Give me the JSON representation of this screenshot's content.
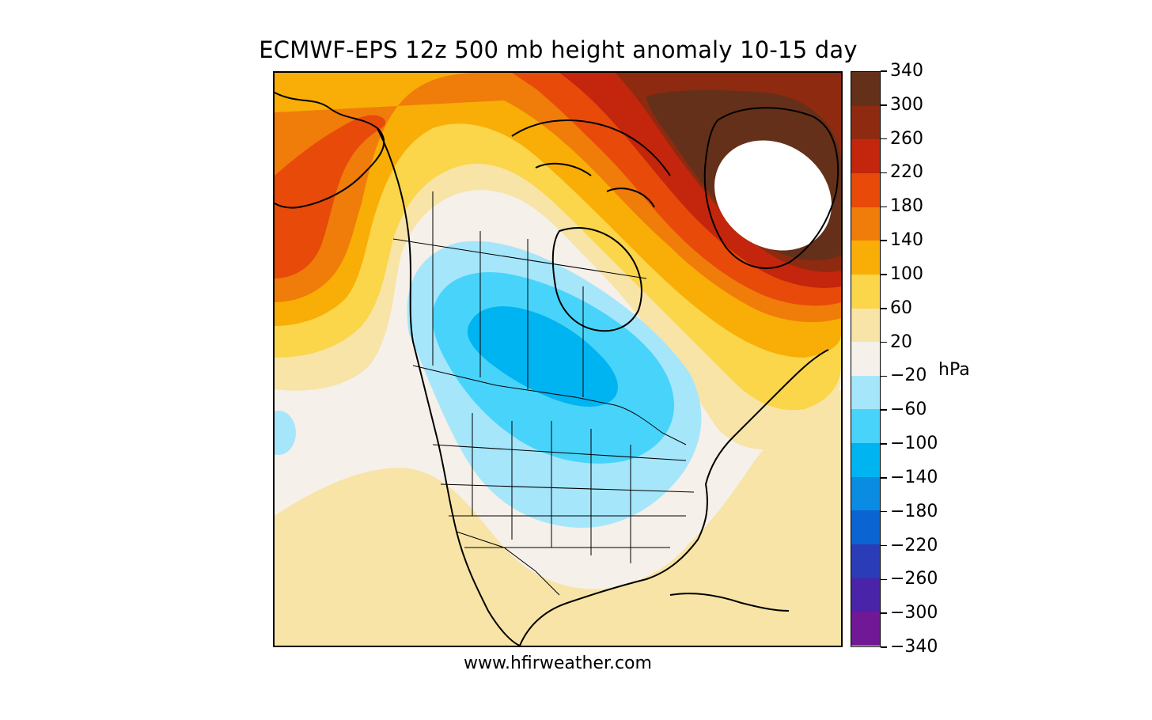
{
  "title": "ECMWF-EPS 12z 500 mb height anomaly 10-15 day",
  "credit": "www.hfirweather.com",
  "colorbar": {
    "unit": "hPa",
    "tick_labels": [
      "340",
      "300",
      "260",
      "220",
      "180",
      "140",
      "100",
      "60",
      "20",
      "−20",
      "−60",
      "−100",
      "−140",
      "−180",
      "−220",
      "−260",
      "−300",
      "−340"
    ],
    "bands_top_to_bottom": [
      {
        "range": "300 to 340",
        "color": "#64301a"
      },
      {
        "range": "260 to 300",
        "color": "#8e2a10"
      },
      {
        "range": "220 to 260",
        "color": "#c3260c"
      },
      {
        "range": "180 to 220",
        "color": "#e84a0a"
      },
      {
        "range": "140 to 180",
        "color": "#f07c0a"
      },
      {
        "range": "100 to 140",
        "color": "#f8ae06"
      },
      {
        "range": "60 to 100",
        "color": "#fbd54a"
      },
      {
        "range": "20 to 60",
        "color": "#f7e4a6"
      },
      {
        "range": "-20 to 20",
        "color": "#f5f0e9"
      },
      {
        "range": "-60 to -20",
        "color": "#a6e6fb"
      },
      {
        "range": "-100 to -60",
        "color": "#48d4fa"
      },
      {
        "range": "-140 to -100",
        "color": "#00b4f1"
      },
      {
        "range": "-180 to -140",
        "color": "#0a8ce2"
      },
      {
        "range": "-220 to -180",
        "color": "#0a64d2"
      },
      {
        "range": "-260 to -220",
        "color": "#2a3cb8"
      },
      {
        "range": "-300 to -260",
        "color": "#4a24a8"
      },
      {
        "range": "-340 to -300",
        "color": "#701896"
      }
    ]
  },
  "features": {
    "ridge": "Strong positive height anomaly over Greenland and the Canadian Arctic (above 340)",
    "trough": "Negative height anomaly over central Canada and the north-central United States (-100 to -140 core)"
  }
}
